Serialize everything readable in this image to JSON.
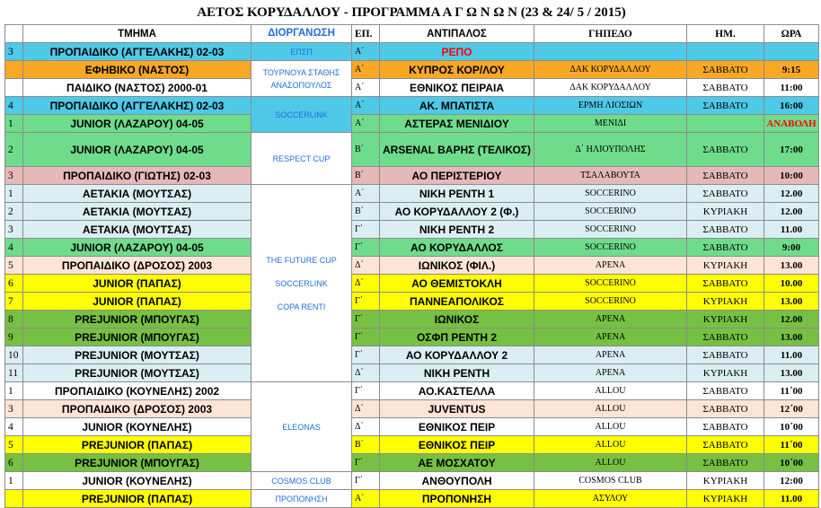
{
  "title": "ΑΕΤΟΣ ΚΟΡΥΔΑΛΛΟΥ - ΠΡΟΓΡΑΜΜΑ Α Γ Ω Ν Ω Ν (23 & 24/ 5 / 2015)",
  "headers": {
    "team": "ΤΜΗΜΑ",
    "organizer": "ΔΙΟΡΓΑΝΩΣΗ",
    "round": "ΕΠ.",
    "opponent": "ΑΝΤΙΠΑΛΟΣ",
    "venue": "ΓΗΠΕΔΟ",
    "day": "ΗΜ.",
    "time": "ΩΡΑ"
  },
  "colors": {
    "cyan": "#4ec9e8",
    "orange": "#f9a825",
    "white": "#ffffff",
    "green": "#6fdc8c",
    "pink": "#e6b8b7",
    "lightblue": "#dbeef4",
    "peach": "#fce4d6",
    "yellow": "#ffff00",
    "olive": "#76c043",
    "red_text": "#ff0000",
    "org_text": "#1f6fd8"
  },
  "organizers": {
    "epsp": "ΕΠΣΠ",
    "tournament": "ΤΟΥΡΝΟΥΑ ΣΤΑΘΗΣ ΑΝΑΣΟΠΟΥΛΟΣ",
    "soccerlink_1": "SOCCERLINK",
    "respect_cup": "RESPECT CUP",
    "future_cup": "THE FUTURE CUP",
    "soccerlink_2": "SOCCERLINK",
    "copa_renti": "COPA RENTI",
    "eleonas": "ELEONAS",
    "cosmos_club": "COSMOS CLUB",
    "training": "ΠΡΟΠΟΝΗΣΗ"
  },
  "rows": [
    {
      "num": "3",
      "team": "ΠΡΟΠΑΙΔΙΚΟ (ΑΓΓΕΛΑΚΗΣ) 02-03",
      "round": "Α΄",
      "opponent": "ΡΕΠΟ",
      "venue": "",
      "day": "",
      "time": "",
      "color": "cyan"
    },
    {
      "num": "",
      "team": "ΕΦΗΒΙΚΟ (ΝΑΣΤΟΣ)",
      "round": "Α΄",
      "opponent": "ΚΥΠΡΟΣ ΚΟΡ/ΛΟΥ",
      "venue": "ΔΑΚ ΚΟΡΥΔΑΛΛΟΥ",
      "day": "ΣΑΒΒΑΤΟ",
      "time": "9:15",
      "color": "orange"
    },
    {
      "num": "",
      "team": "ΠΑΙΔΙΚΟ (ΝΑΣΤΟΣ) 2000-01",
      "round": "Α΄",
      "opponent": "ΕΘΝΙΚΟΣ ΠΕΙΡΑΙΑ",
      "venue": "ΔΑΚ ΚΟΡΥΔΑΛΛΟΥ",
      "day": "ΣΑΒΒΑΤΟ",
      "time": "11:00",
      "color": "white"
    },
    {
      "num": "4",
      "team": "ΠΡΟΠΑΙΔΙΚΟ (ΑΓΓΕΛΑΚΗΣ) 02-03",
      "round": "Α΄",
      "opponent": "ΑΚ. ΜΠΑΤΙΣΤΑ",
      "venue": "ΕΡΜΗ ΛΙΟΣΙΩΝ",
      "day": "ΣΑΒΒΑΤΟ",
      "time": "16:00",
      "color": "cyan"
    },
    {
      "num": "1",
      "team": "JUNIOR (ΛΑΖΑΡΟΥ) 04-05",
      "round": "Α΄",
      "opponent": "ΑΣΤΕΡΑΣ ΜΕΝΙΔΙΟΥ",
      "venue": "ΜΕΝΙΔΙ",
      "day": "",
      "time": "ΑΝΑΒΟΛΗ",
      "color": "green"
    },
    {
      "num": "2",
      "team": "JUNIOR (ΛΑΖΑΡΟΥ) 04-05",
      "round": "Β΄",
      "opponent": "ARSENAL ΒΑΡΗΣ (ΤΕΛΙΚΟΣ)",
      "venue": "Δ΄ ΗΛΙΟΥΠΟΛΗΣ",
      "day": "ΣΑΒΒΑΤΟ",
      "time": "17:00",
      "color": "green"
    },
    {
      "num": "3",
      "team": "ΠΡΟΠΑΙΔΙΚΟ (ΓΙΩΤΗΣ) 02-03",
      "round": "Β΄",
      "opponent": "ΑΟ ΠΕΡΙΣΤΕΡΙΟΥ",
      "venue": "ΤΣΑΛΑΒΟΥΤΑ",
      "day": "ΣΑΒΒΑΤΟ",
      "time": "10:00",
      "color": "pink"
    },
    {
      "num": "1",
      "team": "ΑΕΤΑΚΙΑ (ΜΟΥΤΣΑΣ)",
      "round": "Α΄",
      "opponent": "ΝΙΚΗ ΡΕΝΤΗ 1",
      "venue": "SOCCERINO",
      "day": "ΣΑΒΒΑΤΟ",
      "time": "12.00",
      "color": "lightblue"
    },
    {
      "num": "2",
      "team": "ΑΕΤΑΚΙΑ (ΜΟΥΤΣΑΣ)",
      "round": "Β΄",
      "opponent": "ΑΟ ΚΟΡΥΔΑΛΛΟΥ 2 (Φ.)",
      "venue": "SOCCERINO",
      "day": "ΚΥΡΙΑΚΗ",
      "time": "12.00",
      "color": "lightblue"
    },
    {
      "num": "3",
      "team": "ΑΕΤΑΚΙΑ (ΜΟΥΤΣΑΣ)",
      "round": "Γ΄",
      "opponent": "ΝΙΚΗ ΡΕΝΤΗ 2",
      "venue": "SOCCERINO",
      "day": "ΣΑΒΒΑΤΟ",
      "time": "11.00",
      "color": "lightblue"
    },
    {
      "num": "4",
      "team": "JUNIOR (ΛΑΖΑΡΟΥ) 04-05",
      "round": "Γ΄",
      "opponent": "ΑΟ ΚΟΡΥΔΑΛΛΟΣ",
      "venue": "SOCCERINO",
      "day": "ΣΑΒΒΑΤΟ",
      "time": "9:00",
      "color": "green"
    },
    {
      "num": "5",
      "team": "ΠΡΟΠΑΙΔΙΚΟ (ΔΡΟΣΟΣ) 2003",
      "round": "Δ΄",
      "opponent": "ΙΩΝΙΚΟΣ (ΦΙΛ.)",
      "venue": "ΑΡΕΝΑ",
      "day": "ΚΥΡΙΑΚΗ",
      "time": "13.00",
      "color": "peach"
    },
    {
      "num": "6",
      "team": "JUNIOR (ΠΑΠΑΣ)",
      "round": "Δ΄",
      "opponent": "ΑΟ ΘΕΜΙΣΤΟΚΛΗ",
      "venue": "SOCCERINO",
      "day": "ΣΑΒΒΑΤΟ",
      "time": "10.00",
      "color": "yellow"
    },
    {
      "num": "7",
      "team": "JUNIOR (ΠΑΠΑΣ)",
      "round": "Γ΄",
      "opponent": "ΠΑΝΝΕΑΠΟΛΙΚΟΣ",
      "venue": "SOCCERINO",
      "day": "ΚΥΡΙΑΚΗ",
      "time": "13.00",
      "color": "yellow"
    },
    {
      "num": "8",
      "team": "PREJUNIOR (ΜΠΟΥΓΑΣ)",
      "round": "Γ΄",
      "opponent": "ΙΩΝΙΚΟΣ",
      "venue": "ΑΡΕΝΑ",
      "day": "ΚΥΡΙΑΚΗ",
      "time": "12.00",
      "color": "olive"
    },
    {
      "num": "9",
      "team": "PREJUNIOR (ΜΠΟΥΓΑΣ)",
      "round": "Γ΄",
      "opponent": "ΟΣΦΠ ΡΕΝΤΗ 2",
      "venue": "ΑΡΕΝΑ",
      "day": "ΣΑΒΒΑΤΟ",
      "time": "13.00",
      "color": "olive"
    },
    {
      "num": "10",
      "team": "PREJUNIOR (ΜΟΥΤΣΑΣ)",
      "round": "Γ΄",
      "opponent": "ΑΟ ΚΟΡΥΔΑΛΛΟΥ 2",
      "venue": "ΑΡΕΝΑ",
      "day": "ΣΑΒΒΑΤΟ",
      "time": "11.00",
      "color": "lightblue"
    },
    {
      "num": "11",
      "team": "PREJUNIOR (ΜΟΥΤΣΑΣ)",
      "round": "Δ΄",
      "opponent": "ΝΙΚΗ ΡΕΝΤΗ",
      "venue": "ΑΡΕΝΑ",
      "day": "ΚΥΡΙΑΚΗ",
      "time": "13.00",
      "color": "lightblue"
    },
    {
      "num": "1",
      "team": "ΠΡΟΠΑΙΔΙΚΟ (ΚΟΥΝΕΛΗΣ) 2002",
      "round": "Γ΄",
      "opponent": "ΑΟ.ΚΑΣΤΕΛΛΑ",
      "venue": "ALLOU",
      "day": "ΣΑΒΒΑΤΟ",
      "time": "11΄00",
      "color": "white"
    },
    {
      "num": "3",
      "team": "ΠΡΟΠΑΙΔΙΚΟ (ΔΡΟΣΟΣ) 2003",
      "round": "Δ΄",
      "opponent": "JUVENTUS",
      "venue": "ALLOU",
      "day": "ΣΑΒΒΑΤΟ",
      "time": "12΄00",
      "color": "peach"
    },
    {
      "num": "4",
      "team": "JUNIOR (ΚΟΥΝΕΛΗΣ)",
      "round": "Δ΄",
      "opponent": "ΕΘΝΙΚΟΣ ΠΕΙΡ",
      "venue": "ALLOU",
      "day": "ΣΑΒΒΑΤΟ",
      "time": "10΄00",
      "color": "white"
    },
    {
      "num": "5",
      "team": "PREJUNIOR (ΠΑΠΑΣ)",
      "round": "Β΄",
      "opponent": "ΕΘΝΙΚΟΣ ΠΕΙΡ",
      "venue": "ALLOU",
      "day": "ΣΑΒΒΑΤΟ",
      "time": "11΄00",
      "color": "yellow"
    },
    {
      "num": "6",
      "team": "PREJUNIOR (ΜΠΟΥΓΑΣ)",
      "round": "Γ΄",
      "opponent": "ΑΕ ΜΟΣΧΑΤΟΥ",
      "venue": "ALLOU",
      "day": "ΣΑΒΒΑΤΟ",
      "time": "10΄00",
      "color": "olive"
    },
    {
      "num": "1",
      "team": "JUNIOR (ΚΟΥΝΕΛΗΣ)",
      "round": "Γ΄",
      "opponent": "ΑΝΘΟΥΠΟΛΗ",
      "venue": "COSMOS CLUB",
      "day": "ΚΥΡΙΑΚΗ",
      "time": "12:00",
      "color": "white"
    },
    {
      "num": "",
      "team": "PREJUNIOR (ΠΑΠΑΣ)",
      "round": "Α΄",
      "opponent": "ΠΡΟΠΟΝΗΣΗ",
      "venue": "ΑΣΥΛΟΥ",
      "day": "ΚΥΡΙΑΚΗ",
      "time": "11.00",
      "color": "yellow"
    }
  ]
}
